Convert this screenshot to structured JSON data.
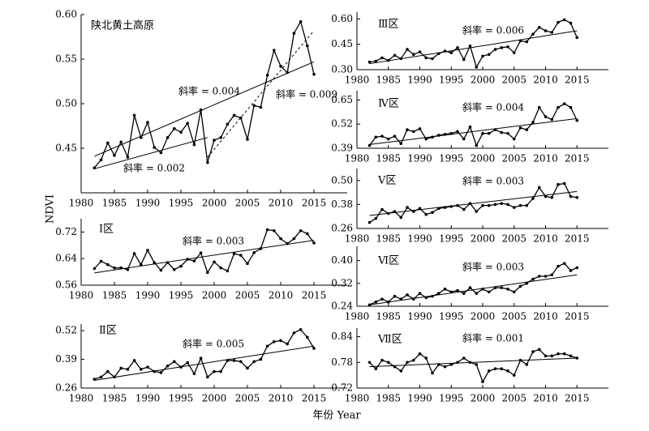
{
  "x_label": "年份 Year",
  "y_label": "NDVI",
  "chart_data": [
    {
      "type": "line",
      "title": "陕北黄土高原",
      "annotations": [
        "斜率 = 0.004",
        "斜率 = 0.009",
        "斜率 = 0.002"
      ],
      "x": [
        1982,
        1983,
        1984,
        1985,
        1986,
        1987,
        1988,
        1989,
        1990,
        1991,
        1992,
        1993,
        1994,
        1995,
        1996,
        1997,
        1998,
        1999,
        2000,
        2001,
        2002,
        2003,
        2004,
        2005,
        2006,
        2007,
        2008,
        2009,
        2010,
        2011,
        2012,
        2013,
        2014,
        2015
      ],
      "values": [
        0.428,
        0.437,
        0.456,
        0.442,
        0.457,
        0.44,
        0.487,
        0.462,
        0.479,
        0.451,
        0.445,
        0.462,
        0.472,
        0.468,
        0.478,
        0.454,
        0.493,
        0.434,
        0.459,
        0.462,
        0.477,
        0.487,
        0.484,
        0.46,
        0.498,
        0.496,
        0.532,
        0.56,
        0.542,
        0.535,
        0.579,
        0.592,
        0.565,
        0.533
      ],
      "trend_lines": [
        {
          "x": [
            1982,
            2015
          ],
          "y": [
            0.441,
            0.547
          ],
          "style": "solid"
        },
        {
          "x": [
            1999,
            2015
          ],
          "y": [
            0.44,
            0.582
          ],
          "style": "dashed"
        },
        {
          "x": [
            1982,
            1999
          ],
          "y": [
            0.427,
            0.462
          ],
          "style": "solid"
        }
      ],
      "xlim": [
        1980,
        2020
      ],
      "xticks": [
        1980,
        1985,
        1990,
        1995,
        2000,
        2005,
        2010,
        2015
      ],
      "ylim": [
        0.4,
        0.6
      ],
      "yticks": [
        0.45,
        {
          "value": 0.5,
          "label": "0.50"
        },
        0.55,
        {
          "value": 0.6,
          "label": "0.60"
        }
      ],
      "color": "#000000"
    },
    {
      "type": "line",
      "title": "Ⅰ区",
      "annotations": [
        "斜率 = 0.003"
      ],
      "x": [
        1982,
        1983,
        1984,
        1985,
        1986,
        1987,
        1988,
        1989,
        1990,
        1991,
        1992,
        1993,
        1994,
        1995,
        1996,
        1997,
        1998,
        1999,
        2000,
        2001,
        2002,
        2003,
        2004,
        2005,
        2006,
        2007,
        2008,
        2009,
        2010,
        2011,
        2012,
        2013,
        2014,
        2015
      ],
      "values": [
        0.61,
        0.632,
        0.622,
        0.612,
        0.612,
        0.607,
        0.655,
        0.622,
        0.665,
        0.628,
        0.605,
        0.628,
        0.607,
        0.617,
        0.638,
        0.633,
        0.657,
        0.598,
        0.63,
        0.612,
        0.603,
        0.655,
        0.65,
        0.625,
        0.658,
        0.67,
        0.727,
        0.724,
        0.7,
        0.685,
        0.7,
        0.724,
        0.715,
        0.687
      ],
      "trend_lines": [
        {
          "x": [
            1982,
            2015
          ],
          "y": [
            0.597,
            0.695
          ],
          "style": "solid"
        }
      ],
      "xlim": [
        1980,
        2020
      ],
      "xticks": [
        1980,
        1985,
        1990,
        1995,
        2000,
        2005,
        2010,
        2015
      ],
      "ylim": [
        0.56,
        0.76
      ],
      "yticks": [
        0.56,
        0.64,
        0.72
      ],
      "color": "#000000"
    },
    {
      "type": "line",
      "title": "Ⅱ区",
      "annotations": [
        "斜率 = 0.005"
      ],
      "x": [
        1982,
        1983,
        1984,
        1985,
        1986,
        1987,
        1988,
        1989,
        1990,
        1991,
        1992,
        1993,
        1994,
        1995,
        1996,
        1997,
        1998,
        1999,
        2000,
        2001,
        2002,
        2003,
        2004,
        2005,
        2006,
        2007,
        2008,
        2009,
        2010,
        2011,
        2012,
        2013,
        2014,
        2015
      ],
      "values": [
        0.3,
        0.31,
        0.335,
        0.31,
        0.35,
        0.345,
        0.385,
        0.345,
        0.355,
        0.335,
        0.33,
        0.36,
        0.38,
        0.355,
        0.375,
        0.325,
        0.395,
        0.31,
        0.335,
        0.335,
        0.385,
        0.385,
        0.38,
        0.35,
        0.38,
        0.39,
        0.45,
        0.47,
        0.475,
        0.46,
        0.51,
        0.525,
        0.49,
        0.44
      ],
      "trend_lines": [
        {
          "x": [
            1982,
            2015
          ],
          "y": [
            0.295,
            0.45
          ],
          "style": "solid"
        }
      ],
      "xlim": [
        1980,
        2020
      ],
      "xticks": [
        1980,
        1985,
        1990,
        1995,
        2000,
        2005,
        2010,
        2015
      ],
      "ylim": [
        0.26,
        0.55
      ],
      "yticks": [
        0.26,
        0.39,
        0.52
      ],
      "color": "#000000"
    },
    {
      "type": "line",
      "title": "Ⅲ区",
      "annotations": [
        "斜率 = 0.006"
      ],
      "x": [
        1982,
        1983,
        1984,
        1985,
        1986,
        1987,
        1988,
        1989,
        1990,
        1991,
        1992,
        1993,
        1994,
        1995,
        1996,
        1997,
        1998,
        1999,
        2000,
        2001,
        2002,
        2003,
        2004,
        2005,
        2006,
        2007,
        2008,
        2009,
        2010,
        2011,
        2012,
        2013,
        2014,
        2015
      ],
      "values": [
        0.345,
        0.35,
        0.37,
        0.355,
        0.385,
        0.365,
        0.42,
        0.39,
        0.405,
        0.37,
        0.365,
        0.395,
        0.41,
        0.4,
        0.43,
        0.36,
        0.44,
        0.315,
        0.38,
        0.39,
        0.42,
        0.43,
        0.435,
        0.4,
        0.47,
        0.465,
        0.51,
        0.55,
        0.53,
        0.52,
        0.58,
        0.595,
        0.575,
        0.49
      ],
      "trend_lines": [
        {
          "x": [
            1982,
            2015
          ],
          "y": [
            0.335,
            0.53
          ],
          "style": "solid"
        }
      ],
      "xlim": [
        1980,
        2020
      ],
      "xticks": [
        1980,
        1985,
        1990,
        1995,
        2000,
        2005,
        2010,
        2015
      ],
      "ylim": [
        0.3,
        0.64
      ],
      "yticks": [
        {
          "value": 0.3,
          "label": "0.30"
        },
        0.45,
        {
          "value": 0.6,
          "label": "0.60"
        }
      ],
      "color": "#000000"
    },
    {
      "type": "line",
      "title": "Ⅳ区",
      "annotations": [
        "斜率 = 0.004"
      ],
      "x": [
        1982,
        1983,
        1984,
        1985,
        1986,
        1987,
        1988,
        1989,
        1990,
        1991,
        1992,
        1993,
        1994,
        1995,
        1996,
        1997,
        1998,
        1999,
        2000,
        2001,
        2002,
        2003,
        2004,
        2005,
        2006,
        2007,
        2008,
        2009,
        2010,
        2011,
        2012,
        2013,
        2014,
        2015
      ],
      "values": [
        0.405,
        0.45,
        0.455,
        0.44,
        0.455,
        0.415,
        0.49,
        0.48,
        0.495,
        0.44,
        0.45,
        0.46,
        0.465,
        0.47,
        0.48,
        0.44,
        0.505,
        0.405,
        0.47,
        0.47,
        0.49,
        0.475,
        0.47,
        0.44,
        0.5,
        0.49,
        0.53,
        0.61,
        0.56,
        0.545,
        0.61,
        0.63,
        0.61,
        0.54
      ],
      "trend_lines": [
        {
          "x": [
            1982,
            2015
          ],
          "y": [
            0.41,
            0.55
          ],
          "style": "solid"
        }
      ],
      "xlim": [
        1980,
        2020
      ],
      "xticks": [
        1980,
        1985,
        1990,
        1995,
        2000,
        2005,
        2010,
        2015
      ],
      "ylim": [
        0.39,
        0.7
      ],
      "yticks": [
        0.39,
        0.52,
        0.65
      ],
      "color": "#000000"
    },
    {
      "type": "line",
      "title": "Ⅴ区",
      "annotations": [
        "斜率 = 0.003"
      ],
      "x": [
        1982,
        1983,
        1984,
        1985,
        1986,
        1987,
        1988,
        1989,
        1990,
        1991,
        1992,
        1993,
        1994,
        1995,
        1996,
        1997,
        1998,
        1999,
        2000,
        2001,
        2002,
        2003,
        2004,
        2005,
        2006,
        2007,
        2008,
        2009,
        2010,
        2011,
        2012,
        2013,
        2014,
        2015
      ],
      "values": [
        0.29,
        0.31,
        0.355,
        0.335,
        0.345,
        0.315,
        0.365,
        0.345,
        0.36,
        0.33,
        0.34,
        0.36,
        0.365,
        0.37,
        0.375,
        0.355,
        0.385,
        0.345,
        0.375,
        0.375,
        0.38,
        0.385,
        0.38,
        0.365,
        0.375,
        0.375,
        0.41,
        0.465,
        0.42,
        0.415,
        0.48,
        0.485,
        0.42,
        0.415
      ],
      "trend_lines": [
        {
          "x": [
            1982,
            2015
          ],
          "y": [
            0.325,
            0.445
          ],
          "style": "solid"
        }
      ],
      "xlim": [
        1980,
        2020
      ],
      "xticks": [
        1980,
        1985,
        1990,
        1995,
        2000,
        2005,
        2010,
        2015
      ],
      "ylim": [
        0.26,
        0.56
      ],
      "yticks": [
        0.26,
        0.38,
        {
          "value": 0.5,
          "label": "0.50"
        }
      ],
      "color": "#000000"
    },
    {
      "type": "line",
      "title": "Ⅵ区",
      "annotations": [
        "斜率 = 0.003"
      ],
      "x": [
        1982,
        1983,
        1984,
        1985,
        1986,
        1987,
        1988,
        1989,
        1990,
        1991,
        1992,
        1993,
        1994,
        1995,
        1996,
        1997,
        1998,
        1999,
        2000,
        2001,
        2002,
        2003,
        2004,
        2005,
        2006,
        2007,
        2008,
        2009,
        2010,
        2011,
        2012,
        2013,
        2014,
        2015
      ],
      "values": [
        0.245,
        0.255,
        0.265,
        0.255,
        0.275,
        0.265,
        0.28,
        0.265,
        0.285,
        0.27,
        0.275,
        0.285,
        0.3,
        0.29,
        0.295,
        0.285,
        0.305,
        0.285,
        0.3,
        0.29,
        0.305,
        0.305,
        0.3,
        0.29,
        0.31,
        0.32,
        0.335,
        0.345,
        0.345,
        0.35,
        0.38,
        0.39,
        0.365,
        0.375
      ],
      "trend_lines": [
        {
          "x": [
            1982,
            2015
          ],
          "y": [
            0.245,
            0.35
          ],
          "style": "solid"
        }
      ],
      "xlim": [
        1980,
        2020
      ],
      "xticks": [
        1980,
        1985,
        1990,
        1995,
        2000,
        2005,
        2010,
        2015
      ],
      "ylim": [
        0.24,
        0.45
      ],
      "yticks": [
        0.24,
        0.32,
        {
          "value": 0.4,
          "label": "0.40"
        }
      ],
      "color": "#000000"
    },
    {
      "type": "line",
      "title": "Ⅶ区",
      "annotations": [
        "斜率 = 0.001"
      ],
      "x": [
        1982,
        1983,
        1984,
        1985,
        1986,
        1987,
        1988,
        1989,
        1990,
        1991,
        1992,
        1993,
        1994,
        1995,
        1996,
        1997,
        1998,
        1999,
        2000,
        2001,
        2002,
        2003,
        2004,
        2005,
        2006,
        2007,
        2008,
        2009,
        2010,
        2011,
        2012,
        2013,
        2014,
        2015
      ],
      "values": [
        0.78,
        0.765,
        0.785,
        0.78,
        0.77,
        0.76,
        0.78,
        0.785,
        0.8,
        0.79,
        0.755,
        0.775,
        0.77,
        0.775,
        0.78,
        0.79,
        0.78,
        0.775,
        0.735,
        0.76,
        0.765,
        0.765,
        0.76,
        0.75,
        0.785,
        0.775,
        0.805,
        0.81,
        0.795,
        0.795,
        0.8,
        0.8,
        0.795,
        0.79
      ],
      "trend_lines": [
        {
          "x": [
            1982,
            2015
          ],
          "y": [
            0.77,
            0.79
          ],
          "style": "solid"
        }
      ],
      "xlim": [
        1980,
        2020
      ],
      "xticks": [
        1980,
        1985,
        1990,
        1995,
        2000,
        2005,
        2010,
        2015
      ],
      "ylim": [
        0.72,
        0.86
      ],
      "yticks": [
        0.72,
        0.78,
        0.84
      ],
      "color": "#000000"
    }
  ]
}
